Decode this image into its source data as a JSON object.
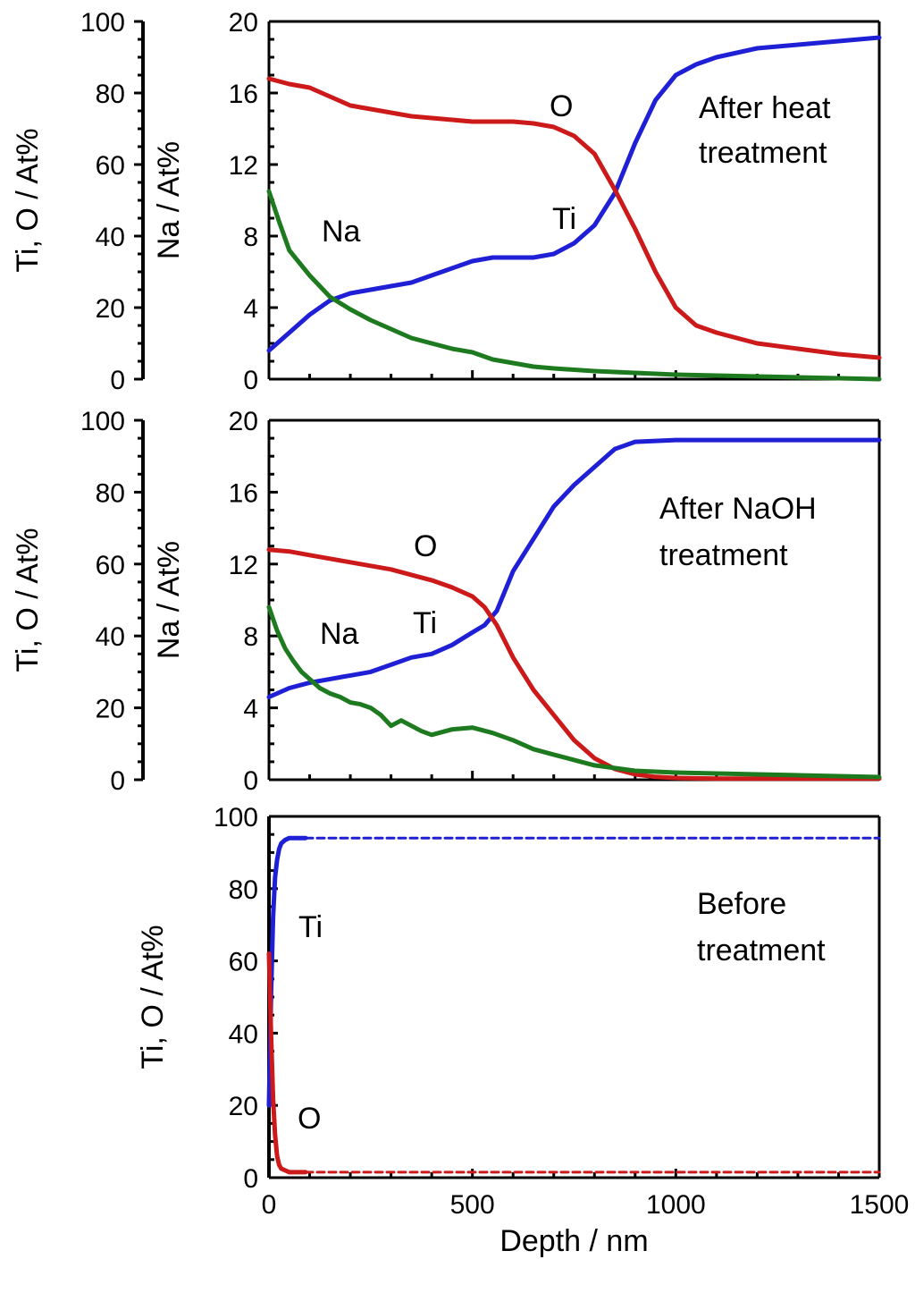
{
  "chart_data": [
    {
      "id": "heat",
      "type": "line",
      "title": "",
      "xlabel": "",
      "ylabel_left": "Ti, O / At%",
      "ylabel_right": "Na / At%",
      "annotation": [
        "After heat",
        "treatment"
      ],
      "xlim": [
        0,
        1500
      ],
      "ylim_left": [
        0,
        100
      ],
      "ylim_right": [
        0,
        20
      ],
      "left_ticks": [
        "100",
        "80",
        "60",
        "40",
        "20",
        "0"
      ],
      "right_ticks": [
        "20",
        "16",
        "12",
        "8",
        "4",
        "0"
      ],
      "x_tick_labels": [],
      "series": [
        {
          "name": "Ti",
          "axis": "left",
          "color": "#1f1fd6",
          "label": "Ti",
          "x": [
            0,
            50,
            100,
            150,
            200,
            250,
            300,
            350,
            400,
            450,
            500,
            550,
            600,
            650,
            700,
            750,
            800,
            850,
            900,
            950,
            1000,
            1050,
            1100,
            1200,
            1300,
            1400,
            1500
          ],
          "y": [
            8,
            13,
            18,
            22,
            24,
            25,
            26,
            27,
            29,
            31,
            33,
            34,
            34,
            34,
            35,
            38,
            43,
            52,
            66,
            78,
            85,
            88,
            90,
            92.5,
            93.5,
            94.5,
            95.5
          ]
        },
        {
          "name": "O",
          "axis": "left",
          "color": "#cc1a1a",
          "label": "O",
          "x": [
            0,
            50,
            100,
            150,
            200,
            250,
            300,
            350,
            400,
            450,
            500,
            550,
            600,
            650,
            700,
            750,
            800,
            850,
            900,
            950,
            1000,
            1050,
            1100,
            1200,
            1300,
            1400,
            1500
          ],
          "y": [
            84,
            82.5,
            81.5,
            79,
            76.5,
            75.5,
            74.5,
            73.5,
            73,
            72.5,
            72,
            72,
            72,
            71.5,
            70.5,
            68,
            63,
            53,
            42,
            30,
            20,
            15,
            13,
            10,
            8.5,
            7,
            6
          ]
        },
        {
          "name": "Na",
          "axis": "right",
          "color": "#1e7a1e",
          "label": "Na",
          "x": [
            0,
            25,
            50,
            100,
            150,
            200,
            250,
            300,
            350,
            400,
            450,
            500,
            550,
            600,
            650,
            700,
            800,
            900,
            1000,
            1100,
            1200,
            1300,
            1400,
            1500
          ],
          "y": [
            10.5,
            8.8,
            7.2,
            5.8,
            4.6,
            3.9,
            3.3,
            2.8,
            2.3,
            2.0,
            1.7,
            1.5,
            1.1,
            0.9,
            0.7,
            0.6,
            0.45,
            0.35,
            0.25,
            0.2,
            0.15,
            0.1,
            0.05,
            0.0
          ]
        }
      ]
    },
    {
      "id": "naoh",
      "type": "line",
      "title": "",
      "xlabel": "",
      "ylabel_left": "Ti, O / At%",
      "ylabel_right": "Na / At%",
      "annotation": [
        "After   NaOH",
        "treatment"
      ],
      "xlim": [
        0,
        1500
      ],
      "ylim_left": [
        0,
        100
      ],
      "ylim_right": [
        0,
        20
      ],
      "left_ticks": [
        "100",
        "80",
        "60",
        "40",
        "20",
        "0"
      ],
      "right_ticks": [
        "20",
        "16",
        "12",
        "8",
        "4",
        "0"
      ],
      "x_tick_labels": [],
      "series": [
        {
          "name": "Ti",
          "axis": "left",
          "color": "#1f1fd6",
          "label": "Ti",
          "x": [
            0,
            50,
            100,
            150,
            200,
            250,
            300,
            350,
            400,
            450,
            500,
            530,
            560,
            600,
            650,
            700,
            750,
            800,
            850,
            900,
            1000,
            1100,
            1200,
            1300,
            1400,
            1500
          ],
          "y": [
            23,
            25.5,
            27,
            28,
            29,
            30,
            32,
            34,
            35,
            37.5,
            41,
            43,
            47,
            58,
            67,
            76,
            82,
            87,
            92,
            94,
            94.5,
            94.5,
            94.5,
            94.5,
            94.5,
            94.5
          ]
        },
        {
          "name": "O",
          "axis": "left",
          "color": "#cc1a1a",
          "label": "O",
          "x": [
            0,
            50,
            100,
            150,
            200,
            250,
            300,
            350,
            400,
            450,
            500,
            530,
            560,
            600,
            650,
            700,
            750,
            800,
            850,
            900,
            950,
            1000,
            1100,
            1200,
            1300,
            1400,
            1500
          ],
          "y": [
            64,
            63.5,
            62.5,
            61.5,
            60.5,
            59.5,
            58.5,
            57,
            55.5,
            53.5,
            51,
            48,
            43,
            34,
            25,
            18,
            11,
            6,
            3,
            1.5,
            0.8,
            0.5,
            0.3,
            0.3,
            0.3,
            0.3,
            0.3
          ]
        },
        {
          "name": "Na",
          "axis": "right",
          "color": "#1e7a1e",
          "label": "Na",
          "x": [
            0,
            20,
            40,
            60,
            80,
            100,
            125,
            150,
            175,
            200,
            225,
            250,
            275,
            300,
            325,
            350,
            375,
            400,
            450,
            500,
            550,
            600,
            650,
            700,
            750,
            800,
            900,
            1000,
            1100,
            1200,
            1300,
            1400,
            1500
          ],
          "y": [
            9.6,
            8.3,
            7.3,
            6.6,
            6.0,
            5.6,
            5.1,
            4.8,
            4.6,
            4.3,
            4.2,
            4.0,
            3.6,
            3.0,
            3.3,
            3.0,
            2.7,
            2.5,
            2.8,
            2.9,
            2.6,
            2.2,
            1.7,
            1.4,
            1.1,
            0.8,
            0.5,
            0.4,
            0.35,
            0.3,
            0.25,
            0.2,
            0.15
          ]
        }
      ]
    },
    {
      "id": "before",
      "type": "line",
      "title": "",
      "xlabel": "Depth / nm",
      "ylabel_left": "Ti, O / At%",
      "annotation": [
        "Before",
        "treatment"
      ],
      "xlim": [
        0,
        1500
      ],
      "ylim_left": [
        0,
        100
      ],
      "left_ticks": [
        "100",
        "80",
        "60",
        "40",
        "20",
        "0"
      ],
      "x_tick_labels": [
        "0",
        "500",
        "1000",
        "1500"
      ],
      "series": [
        {
          "name": "Ti",
          "axis": "left",
          "color": "#1f1fd6",
          "label": "Ti",
          "x": [
            0,
            5,
            10,
            15,
            20,
            25,
            30,
            40,
            50,
            70,
            90
          ],
          "y": [
            20,
            50,
            72,
            83,
            88,
            91,
            92.5,
            93.5,
            94,
            94,
            94
          ]
        },
        {
          "name": "O",
          "axis": "left",
          "color": "#cc1a1a",
          "label": "O",
          "x": [
            0,
            5,
            10,
            15,
            20,
            25,
            30,
            40,
            50,
            70,
            90
          ],
          "y": [
            62,
            40,
            22,
            12,
            6,
            3.5,
            2.5,
            2,
            1.5,
            1.5,
            1.5
          ]
        },
        {
          "name": "Ti (extrapolated)",
          "axis": "left",
          "color": "#1f1fd6",
          "dashed": true,
          "x": [
            90,
            1500
          ],
          "y": [
            94,
            94
          ]
        },
        {
          "name": "O (extrapolated)",
          "axis": "left",
          "color": "#cc1a1a",
          "dashed": true,
          "x": [
            90,
            1500
          ],
          "y": [
            1.5,
            1.5
          ]
        }
      ]
    }
  ]
}
